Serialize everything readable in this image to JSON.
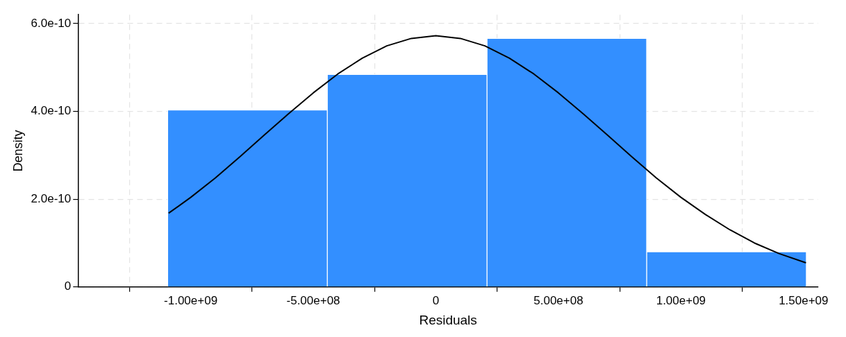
{
  "chart_data": {
    "type": "histogram",
    "xlabel": "Residuals",
    "ylabel": "Density",
    "xlim": [
      -1460000000.0,
      1560000000.0
    ],
    "xticks": [
      {
        "value": -1000000000.0,
        "label": "-1.00e+09"
      },
      {
        "value": -500000000.0,
        "label": "-5.00e+08"
      },
      0,
      {
        "value": 500000000.0,
        "label": "5.00e+08"
      },
      {
        "value": 1000000000.0,
        "label": "1.00e+09"
      },
      {
        "value": 1500000000.0,
        "label": "1.50e+09"
      }
    ],
    "ylim": [
      0,
      6.2e-10
    ],
    "yticks": [
      0,
      {
        "value": 2e-10,
        "label": "2.0e-10"
      },
      {
        "value": 4e-10,
        "label": "4.0e-10"
      },
      {
        "value": 6e-10,
        "label": "6.0e-10"
      }
    ],
    "grid": true,
    "legend": false,
    "series": [
      {
        "type": "histogram",
        "color": "#338fff",
        "bins": [
          -1094000000.0,
          -443000000.0,
          209000000.0,
          860000000.0,
          1512000000.0
        ],
        "values": [
          4.03e-10,
          4.84e-10,
          5.66e-10,
          8e-11
        ]
      },
      {
        "type": "line",
        "color": "#000000",
        "marker": "none",
        "line_style": "solid",
        "x": [
          -1090000000.0,
          -1000000000.0,
          -900000000.0,
          -800000000.0,
          -700000000.0,
          -600000000.0,
          -500000000.0,
          -400000000.0,
          -300000000.0,
          -200000000.0,
          -100000000.0,
          0,
          100000000.0,
          200000000.0,
          300000000.0,
          400000000.0,
          500000000.0,
          600000000.0,
          700000000.0,
          800000000.0,
          900000000.0,
          1000000000.0,
          1100000000.0,
          1200000000.0,
          1300000000.0,
          1400000000.0,
          1510000000.0
        ],
        "values": [
          1.68e-10,
          2.04e-10,
          2.48e-10,
          2.96e-10,
          3.46e-10,
          3.95e-10,
          4.42e-10,
          4.85e-10,
          5.21e-10,
          5.49e-10,
          5.66e-10,
          5.72e-10,
          5.66e-10,
          5.49e-10,
          5.21e-10,
          4.85e-10,
          4.42e-10,
          3.95e-10,
          3.46e-10,
          2.96e-10,
          2.48e-10,
          2.04e-10,
          1.65e-10,
          1.3e-10,
          1e-10,
          7.6e-11,
          5.5e-11
        ]
      }
    ]
  }
}
